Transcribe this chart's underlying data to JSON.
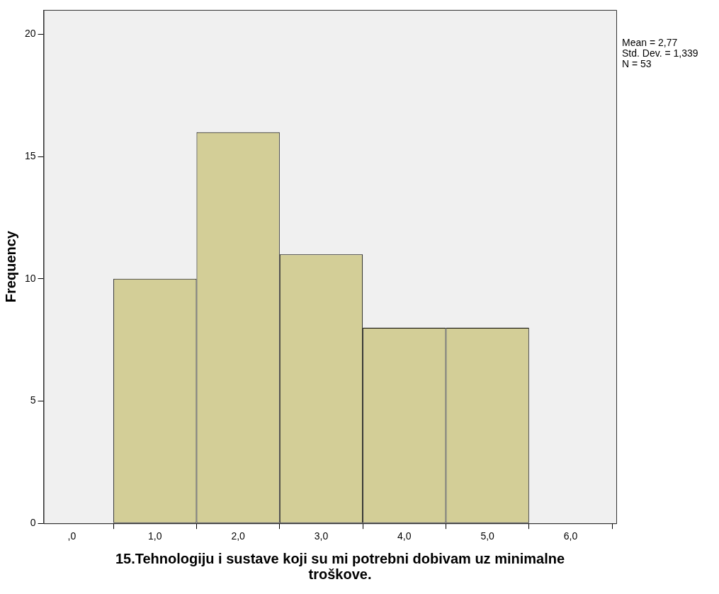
{
  "chart_data": {
    "type": "histogram",
    "xlabel": "15.Tehnologiju i sustave koji su mi potrebni dobivam uz minimalne troškove.",
    "ylabel": "Frequency",
    "bins": [
      0.5,
      1.5,
      2.5,
      3.5,
      4.5,
      5.5
    ],
    "values": [
      10,
      16,
      11,
      8,
      8
    ],
    "color": "#d3ce97",
    "xlim": [
      -0.34,
      6.55
    ],
    "xticks": [
      {
        "value": 0,
        "label": ",0"
      },
      {
        "value": 1,
        "label": "1,0"
      },
      {
        "value": 2,
        "label": "2,0"
      },
      {
        "value": 3,
        "label": "3,0"
      },
      {
        "value": 4,
        "label": "4,0"
      },
      {
        "value": 5,
        "label": "5,0"
      },
      {
        "value": 6,
        "label": "6,0"
      }
    ],
    "ylim": [
      0,
      21
    ],
    "yticks": [
      0,
      5,
      10,
      15,
      20
    ],
    "grid": false,
    "legend": false,
    "annotations": [
      "Mean = 2,77",
      "Std. Dev. = 1,339",
      "N = 53"
    ]
  }
}
